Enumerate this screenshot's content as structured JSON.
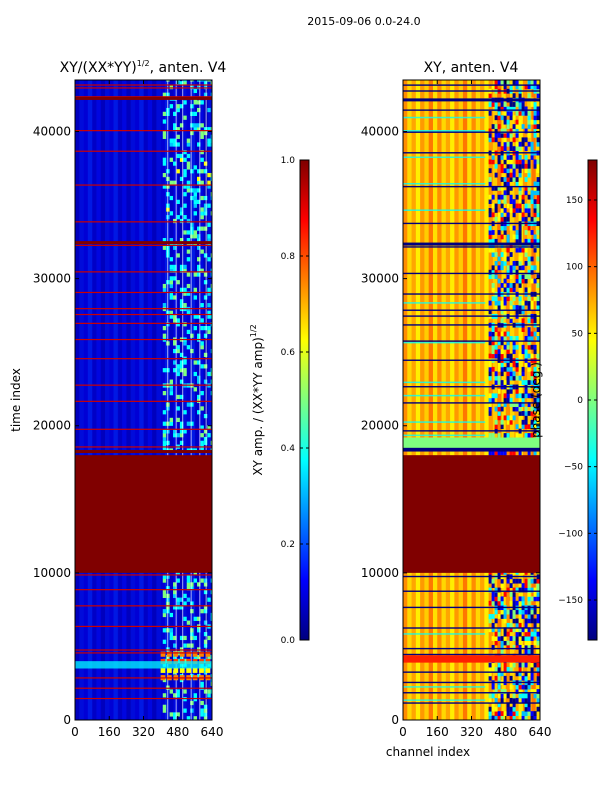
{
  "figure": {
    "suptitle": "2015-09-06 0.0-24.0",
    "xlabel": "channel index",
    "ylabel": "time index"
  },
  "chart_data": [
    {
      "type": "heatmap",
      "title_main": "XY/(XX*YY)",
      "title_sup": "1/2",
      "title_tail": ", anten. V4",
      "x_ticks": [
        "0",
        "160",
        "320",
        "480",
        "640"
      ],
      "x_tick_values": [
        0,
        160,
        320,
        480,
        640
      ],
      "xlim": [
        0,
        640
      ],
      "y_ticks": [
        "0",
        "10000",
        "20000",
        "30000",
        "40000"
      ],
      "y_tick_values": [
        0,
        10000,
        20000,
        30000,
        40000
      ],
      "ylim": [
        0,
        43500
      ],
      "colorbar": {
        "label_main": "XY amp. / (XX*YY amp)",
        "label_sup": "1/2",
        "ticks": [
          "0.0",
          "0.2",
          "0.4",
          "0.6",
          "0.8",
          "1.0"
        ],
        "tick_values": [
          0.0,
          0.2,
          0.4,
          0.6,
          0.8,
          1.0
        ],
        "range": [
          0.0,
          1.0
        ]
      },
      "saturated_time_range": [
        10000,
        18000
      ],
      "background": "#0000cc"
    },
    {
      "type": "heatmap",
      "title": "XY, anten. V4",
      "x_ticks": [
        "0",
        "160",
        "320",
        "480",
        "640"
      ],
      "x_tick_values": [
        0,
        160,
        320,
        480,
        640
      ],
      "xlim": [
        0,
        640
      ],
      "y_ticks": [
        "0",
        "10000",
        "20000",
        "30000",
        "40000"
      ],
      "y_tick_values": [
        0,
        10000,
        20000,
        30000,
        40000
      ],
      "ylim": [
        0,
        43500
      ],
      "colorbar": {
        "label": "phase (deg.)",
        "ticks": [
          "150",
          "100",
          "50",
          "0",
          "−50",
          "−100",
          "−150"
        ],
        "tick_values": [
          150,
          100,
          50,
          0,
          -50,
          -100,
          -150
        ],
        "range": [
          -180,
          180
        ]
      },
      "saturated_time_range": [
        10000,
        18000
      ],
      "background": "#ffc800"
    }
  ],
  "colors": {
    "saturated": "#800000",
    "jet": [
      "#00007f",
      "#0000ff",
      "#007fff",
      "#00ffff",
      "#7fff7f",
      "#ffff00",
      "#ff7f00",
      "#ff0000",
      "#7f0000"
    ]
  }
}
